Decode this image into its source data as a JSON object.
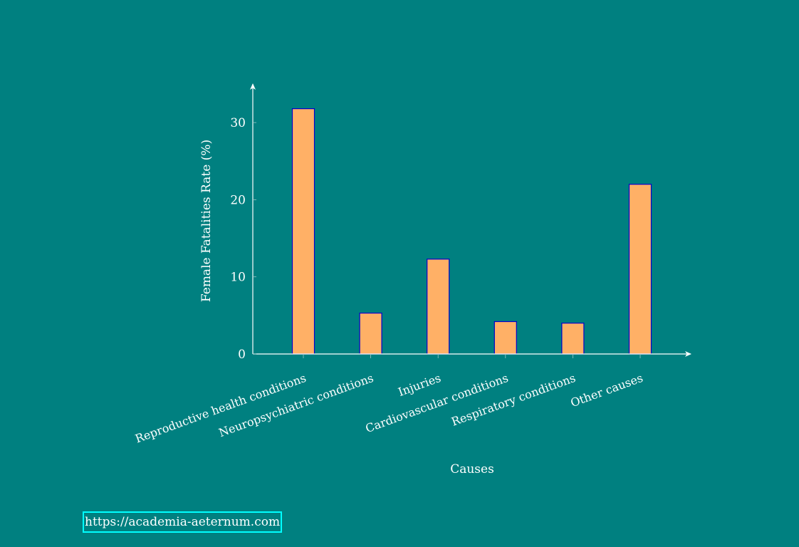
{
  "chart_data": {
    "type": "bar",
    "categories": [
      "Reproductive health conditions",
      "Neuropsychiatric conditions",
      "Injuries",
      "Cardiovascular conditions",
      "Respiratory conditions",
      "Other causes"
    ],
    "values": [
      31.8,
      5.3,
      12.3,
      4.2,
      4.0,
      22.0
    ],
    "xlabel": "Causes",
    "ylabel": "Female Fatalities Rate (%)",
    "ylim": [
      0,
      35
    ],
    "yticks": [
      0,
      10,
      20,
      30
    ],
    "grid": false,
    "legend": "none",
    "colors": {
      "background": "#008080",
      "bar_fill": "#ffb066",
      "bar_stroke": "#0000cc",
      "axis": "#ffffff",
      "text": "#ffffff"
    }
  },
  "footer": {
    "link_text": "https://academia-aeternum.com",
    "link_border_color": "#00ffff"
  }
}
